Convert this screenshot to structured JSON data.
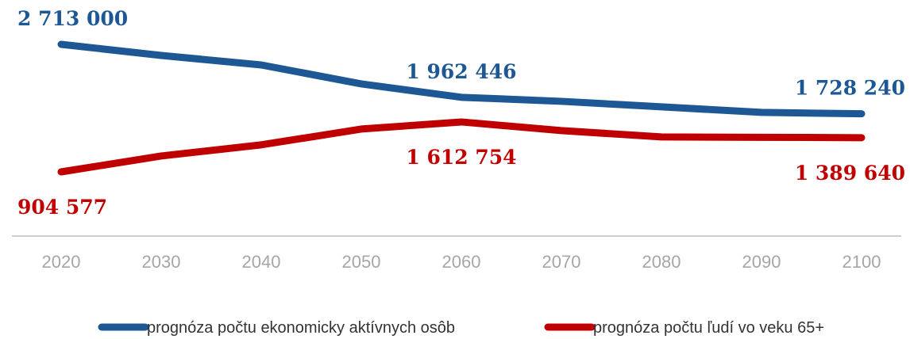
{
  "chart_data": {
    "type": "line",
    "categories": [
      "2020",
      "2030",
      "2040",
      "2050",
      "2060",
      "2070",
      "2080",
      "2090",
      "2100"
    ],
    "series": [
      {
        "name": "prognóza počtu ekonomicky aktívnych osôb",
        "color": "#1d5895",
        "values": [
          2713000,
          2556000,
          2421000,
          2152000,
          1962446,
          1905000,
          1827000,
          1748000,
          1728240
        ],
        "value_labels": [
          "2 713 000",
          null,
          null,
          null,
          "1 962 446",
          null,
          null,
          null,
          "1 728 240"
        ]
      },
      {
        "name": "prognóza počtu ľudí vo veku 65+",
        "color": "#c00000",
        "values": [
          904577,
          1130000,
          1288000,
          1512000,
          1612754,
          1490000,
          1400000,
          1395000,
          1389640
        ],
        "value_labels": [
          "904 577",
          null,
          null,
          null,
          "1 612 754",
          null,
          null,
          null,
          "1 389 640"
        ]
      }
    ]
  }
}
